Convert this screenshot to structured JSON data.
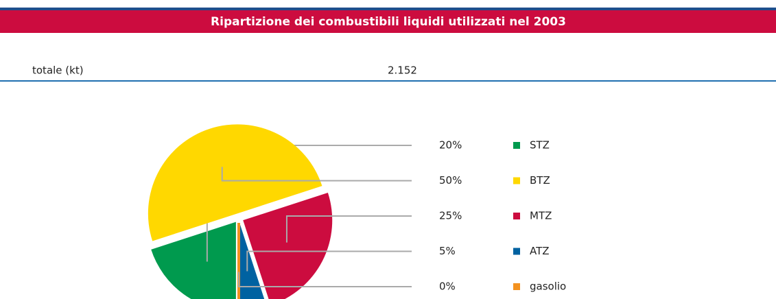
{
  "header": {
    "title": "Ripartizione dei combustibili liquidi utilizzati nel 2003",
    "total_label": "totale (kt)",
    "total_value": "2.152"
  },
  "chart_data": {
    "type": "pie",
    "categories": [
      "STZ",
      "BTZ",
      "MTZ",
      "ATZ",
      "gasolio"
    ],
    "values": [
      20,
      50,
      25,
      5,
      0
    ],
    "value_labels": [
      "20%",
      "50%",
      "25%",
      "5%",
      "0%"
    ],
    "colors": [
      "#009a4e",
      "#ffd800",
      "#cc0c3f",
      "#0062a1",
      "#f39220"
    ]
  }
}
